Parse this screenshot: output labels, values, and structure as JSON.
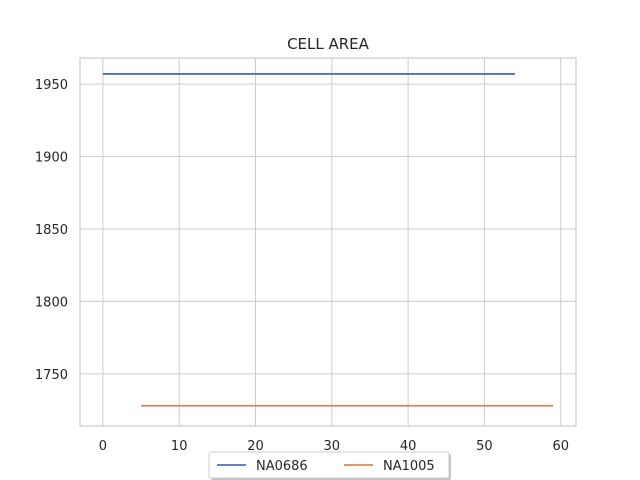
{
  "chart_data": {
    "type": "line",
    "title": "CELL AREA",
    "xlabel": "",
    "ylabel": "",
    "xlim": [
      -3,
      62
    ],
    "ylim": [
      1714,
      1968
    ],
    "xticks": [
      0,
      10,
      20,
      30,
      40,
      50,
      60
    ],
    "yticks": [
      1750,
      1800,
      1850,
      1900,
      1950
    ],
    "grid": true,
    "legend_position": "bottom-center",
    "series": [
      {
        "name": "NA0686",
        "color": "#4c72b0",
        "x": [
          0,
          54
        ],
        "y": [
          1957,
          1957
        ]
      },
      {
        "name": "NA1005",
        "color": "#dd8452",
        "x": [
          5,
          59
        ],
        "y": [
          1728,
          1728
        ]
      }
    ]
  }
}
